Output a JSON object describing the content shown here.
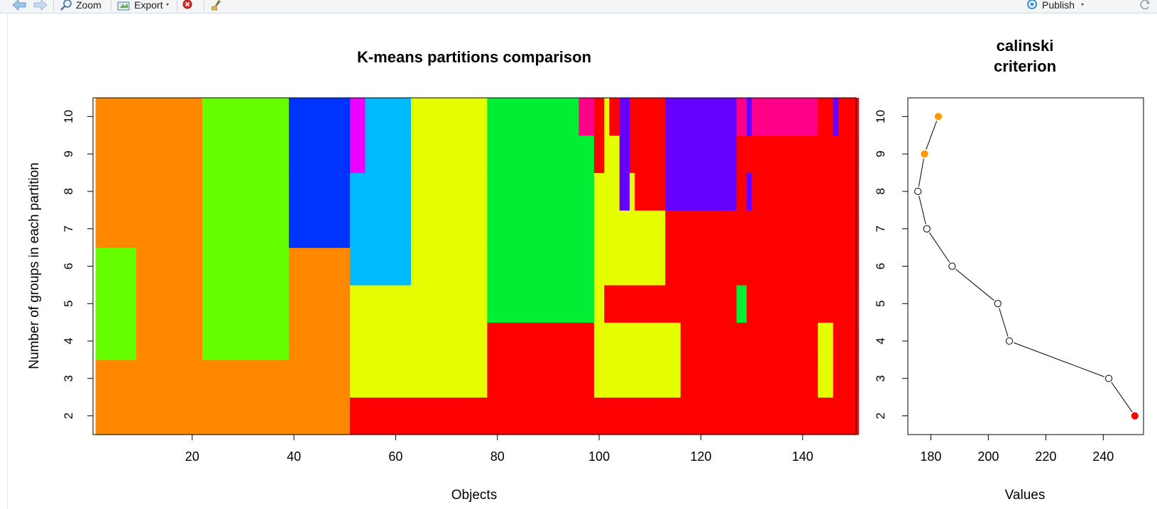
{
  "toolbar": {
    "zoom_label": "Zoom",
    "export_label": "Export",
    "publish_label": "Publish",
    "icons": [
      "back-arrow-icon",
      "forward-arrow-icon",
      "zoom-icon",
      "export-icon",
      "remove-plot-icon",
      "clear-brush-icon",
      "publish-icon",
      "refresh-icon"
    ]
  },
  "chart_data": [
    {
      "type": "heatmap",
      "title": "K-means partitions comparison",
      "xlabel": "Objects",
      "ylabel": "Number of groups in each partition",
      "xlim": [
        1,
        150
      ],
      "ylim": [
        1.5,
        10.5
      ],
      "x_ticks": [
        20,
        40,
        60,
        80,
        100,
        120,
        140
      ],
      "y_ticks": [
        2,
        3,
        4,
        5,
        6,
        7,
        8,
        9,
        10
      ],
      "palette": {
        "O": "#ff8800",
        "G": "#66ff00",
        "B": "#0033ff",
        "M": "#ee00ff",
        "C": "#00bbff",
        "Y": "#e6ff00",
        "N": "#00ee33",
        "P": "#ff0088",
        "R": "#ff0000",
        "V": "#6600ff"
      },
      "cells_note": "Each partition k lists segments [first_object, last_object, color_key]",
      "partitions": [
        {
          "k": 2,
          "segments": [
            [
              1,
              50,
              "O"
            ],
            [
              51,
              150,
              "R"
            ]
          ]
        },
        {
          "k": 3,
          "segments": [
            [
              1,
              50,
              "O"
            ],
            [
              51,
              77,
              "Y"
            ],
            [
              78,
              98,
              "R"
            ],
            [
              99,
              115,
              "Y"
            ],
            [
              116,
              142,
              "R"
            ],
            [
              143,
              145,
              "Y"
            ],
            [
              146,
              150,
              "R"
            ]
          ]
        },
        {
          "k": 4,
          "segments": [
            [
              1,
              8,
              "G"
            ],
            [
              9,
              21,
              "O"
            ],
            [
              22,
              38,
              "G"
            ],
            [
              39,
              50,
              "O"
            ],
            [
              51,
              77,
              "Y"
            ],
            [
              78,
              98,
              "R"
            ],
            [
              99,
              115,
              "Y"
            ],
            [
              116,
              142,
              "R"
            ],
            [
              143,
              145,
              "Y"
            ],
            [
              146,
              150,
              "R"
            ]
          ]
        },
        {
          "k": 5,
          "segments": [
            [
              1,
              8,
              "G"
            ],
            [
              9,
              21,
              "O"
            ],
            [
              22,
              38,
              "G"
            ],
            [
              39,
              50,
              "O"
            ],
            [
              51,
              77,
              "Y"
            ],
            [
              78,
              98,
              "N"
            ],
            [
              99,
              100,
              "Y"
            ],
            [
              101,
              126,
              "R"
            ],
            [
              127,
              128,
              "N"
            ],
            [
              129,
              150,
              "R"
            ]
          ]
        },
        {
          "k": 6,
          "segments": [
            [
              1,
              8,
              "G"
            ],
            [
              9,
              21,
              "O"
            ],
            [
              22,
              38,
              "G"
            ],
            [
              39,
              50,
              "O"
            ],
            [
              51,
              62,
              "C"
            ],
            [
              63,
              77,
              "Y"
            ],
            [
              78,
              98,
              "N"
            ],
            [
              99,
              112,
              "Y"
            ],
            [
              113,
              150,
              "R"
            ]
          ]
        },
        {
          "k": 7,
          "segments": [
            [
              1,
              21,
              "O"
            ],
            [
              22,
              38,
              "G"
            ],
            [
              39,
              50,
              "B"
            ],
            [
              51,
              62,
              "C"
            ],
            [
              63,
              77,
              "Y"
            ],
            [
              78,
              98,
              "N"
            ],
            [
              99,
              112,
              "Y"
            ],
            [
              113,
              150,
              "R"
            ]
          ]
        },
        {
          "k": 8,
          "segments": [
            [
              1,
              21,
              "O"
            ],
            [
              22,
              38,
              "G"
            ],
            [
              39,
              50,
              "B"
            ],
            [
              51,
              62,
              "C"
            ],
            [
              63,
              77,
              "Y"
            ],
            [
              78,
              98,
              "N"
            ],
            [
              99,
              103,
              "Y"
            ],
            [
              104,
              105,
              "V"
            ],
            [
              106,
              106,
              "Y"
            ],
            [
              107,
              112,
              "R"
            ],
            [
              113,
              126,
              "V"
            ],
            [
              127,
              128,
              "R"
            ],
            [
              129,
              129,
              "V"
            ],
            [
              130,
              150,
              "R"
            ]
          ]
        },
        {
          "k": 9,
          "segments": [
            [
              1,
              21,
              "O"
            ],
            [
              22,
              38,
              "G"
            ],
            [
              39,
              50,
              "B"
            ],
            [
              51,
              53,
              "M"
            ],
            [
              54,
              62,
              "C"
            ],
            [
              63,
              77,
              "Y"
            ],
            [
              78,
              98,
              "N"
            ],
            [
              99,
              100,
              "R"
            ],
            [
              101,
              103,
              "Y"
            ],
            [
              104,
              105,
              "V"
            ],
            [
              106,
              112,
              "R"
            ],
            [
              113,
              126,
              "V"
            ],
            [
              127,
              150,
              "R"
            ]
          ]
        },
        {
          "k": 10,
          "segments": [
            [
              1,
              21,
              "O"
            ],
            [
              22,
              38,
              "G"
            ],
            [
              39,
              50,
              "B"
            ],
            [
              51,
              53,
              "M"
            ],
            [
              54,
              62,
              "C"
            ],
            [
              63,
              77,
              "Y"
            ],
            [
              78,
              95,
              "N"
            ],
            [
              96,
              98,
              "P"
            ],
            [
              99,
              100,
              "R"
            ],
            [
              101,
              101,
              "Y"
            ],
            [
              102,
              103,
              "R"
            ],
            [
              104,
              105,
              "V"
            ],
            [
              106,
              112,
              "R"
            ],
            [
              113,
              126,
              "V"
            ],
            [
              127,
              128,
              "P"
            ],
            [
              129,
              129,
              "V"
            ],
            [
              130,
              142,
              "P"
            ],
            [
              143,
              145,
              "R"
            ],
            [
              146,
              146,
              "V"
            ],
            [
              147,
              150,
              "R"
            ]
          ]
        }
      ]
    },
    {
      "type": "line",
      "title": "calinski criterion",
      "title_lines": [
        "calinski",
        "criterion"
      ],
      "xlabel": "Values",
      "ylabel": "",
      "xlim": [
        172,
        254
      ],
      "ylim": [
        1.5,
        10.5
      ],
      "x_ticks": [
        180,
        200,
        220,
        240
      ],
      "y_ticks": [
        2,
        3,
        4,
        5,
        6,
        7,
        8,
        9,
        10
      ],
      "points": [
        {
          "k": 2,
          "value": 251.0,
          "color": "#ff0000",
          "filled": true
        },
        {
          "k": 3,
          "value": 241.9,
          "color": "#ffffff",
          "filled": false
        },
        {
          "k": 4,
          "value": 207.3,
          "color": "#ffffff",
          "filled": false
        },
        {
          "k": 5,
          "value": 203.3,
          "color": "#ffffff",
          "filled": false
        },
        {
          "k": 6,
          "value": 187.4,
          "color": "#ffffff",
          "filled": false
        },
        {
          "k": 7,
          "value": 178.6,
          "color": "#ffffff",
          "filled": false
        },
        {
          "k": 8,
          "value": 175.5,
          "color": "#ffffff",
          "filled": false
        },
        {
          "k": 9,
          "value": 177.8,
          "color": "#ff9900",
          "filled": true
        },
        {
          "k": 10,
          "value": 182.6,
          "color": "#ff9900",
          "filled": true
        }
      ]
    }
  ]
}
